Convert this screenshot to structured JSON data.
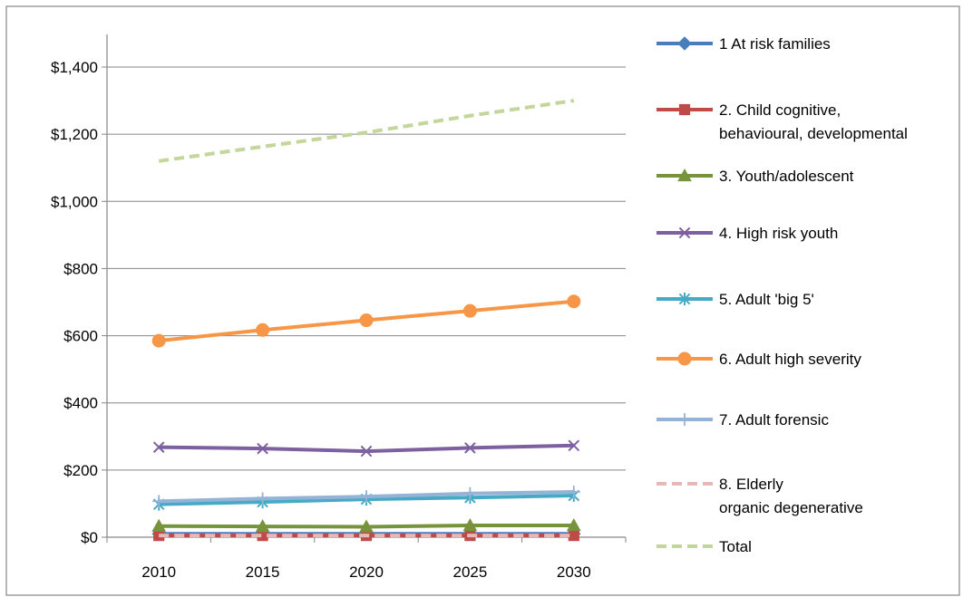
{
  "chart_data": {
    "type": "line",
    "title": "",
    "xlabel": "",
    "ylabel": "",
    "categories": [
      "2010",
      "2015",
      "2020",
      "2025",
      "2030"
    ],
    "ylim": [
      0,
      1400
    ],
    "yticks": [
      "$0",
      "$200",
      "$400",
      "$600",
      "$800",
      "$1,000",
      "$1,200",
      "$1,400"
    ],
    "grid": "horizontal",
    "legend": "right",
    "series": [
      {
        "name": "1 At risk families",
        "values": [
          10,
          10,
          10,
          10,
          10
        ],
        "color": "#4A7EBB",
        "marker": "diamond",
        "dash": "solid"
      },
      {
        "name": "2. Child cognitive, behavioural, developmental",
        "values": [
          5,
          5,
          5,
          5,
          5
        ],
        "color": "#BE4B48",
        "marker": "square",
        "dash": "solid"
      },
      {
        "name": "3. Youth/adolescent",
        "values": [
          33,
          32,
          31,
          35,
          35
        ],
        "color": "#77933C",
        "marker": "triangle",
        "dash": "solid"
      },
      {
        "name": "4. High risk youth",
        "values": [
          268,
          264,
          256,
          266,
          273
        ],
        "color": "#7D60A0",
        "marker": "x",
        "dash": "solid"
      },
      {
        "name": "5. Adult 'big 5'",
        "values": [
          98,
          105,
          113,
          118,
          124
        ],
        "color": "#46AAC5",
        "marker": "asterisk",
        "dash": "solid"
      },
      {
        "name": "6. Adult high severity",
        "values": [
          585,
          617,
          646,
          674,
          702
        ],
        "color": "#F79646",
        "marker": "circle",
        "dash": "solid"
      },
      {
        "name": "7. Adult forensic",
        "values": [
          107,
          115,
          121,
          130,
          135
        ],
        "color": "#95B3D7",
        "marker": "plus",
        "dash": "solid"
      },
      {
        "name": "8. Elderly organic degenerative",
        "values": [
          5,
          5,
          5,
          5,
          5
        ],
        "color": "#E6B9B8",
        "marker": "none",
        "dash": "dashed"
      },
      {
        "name": "Total",
        "values": [
          1120,
          1163,
          1205,
          1255,
          1300
        ],
        "color": "#C3D69B",
        "marker": "none",
        "dash": "dashed"
      }
    ]
  }
}
